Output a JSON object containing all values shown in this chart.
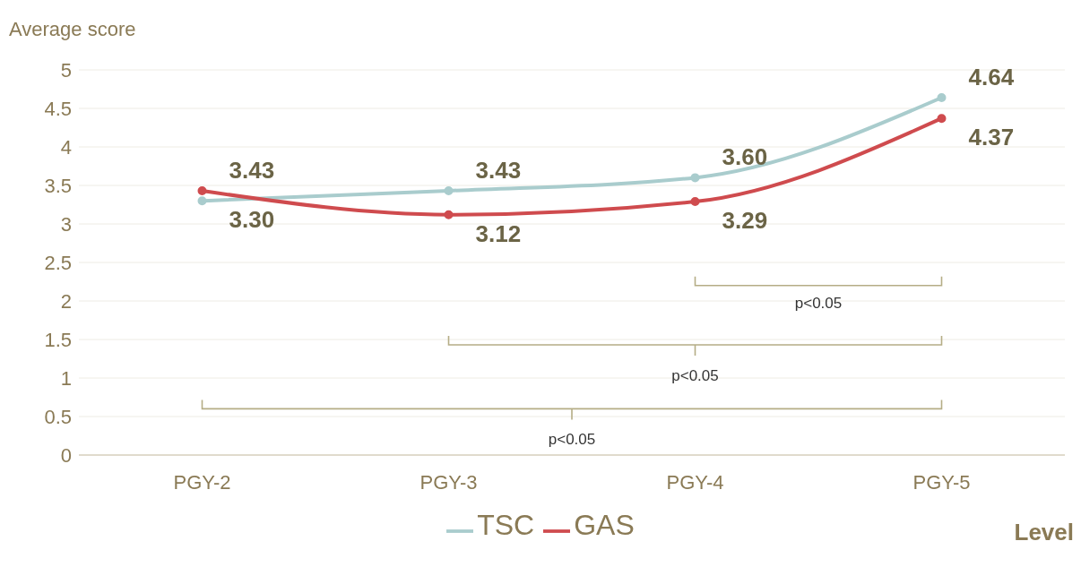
{
  "chart_data": {
    "type": "line",
    "ylabel": "Average score",
    "xlabel": "Level",
    "categories": [
      "PGY-2",
      "PGY-3",
      "PGY-4",
      "PGY-5"
    ],
    "series": [
      {
        "name": "TSC",
        "color": "#a9cccd",
        "values": [
          3.3,
          3.43,
          3.6,
          4.64
        ],
        "value_labels": [
          "3.30",
          "3.43",
          "3.60",
          "4.64"
        ]
      },
      {
        "name": "GAS",
        "color": "#cf4b4e",
        "values": [
          3.43,
          3.12,
          3.29,
          4.37
        ],
        "value_labels": [
          "3.43",
          "3.12",
          "3.29",
          "4.37"
        ]
      }
    ],
    "ylim": [
      0,
      5
    ],
    "yticks": [
      0,
      0.5,
      1,
      1.5,
      2,
      2.5,
      3,
      3.5,
      4,
      4.5,
      5
    ],
    "grid": "y",
    "legend": "bottom",
    "marker": "circle",
    "line_style": "solid",
    "annotations": [
      "p<0.05",
      "p<0.05",
      "p<0.05"
    ]
  }
}
